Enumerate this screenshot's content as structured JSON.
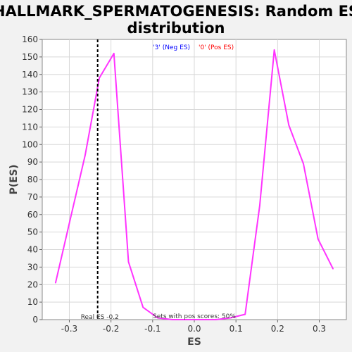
{
  "chart_data": {
    "type": "line",
    "title_line1": "HALLMARK_SPERMATOGENESIS: Random ES",
    "title_line2": "distribution",
    "xlabel": "ES",
    "ylabel": "P(ES)",
    "xlim": [
      -0.365,
      0.365
    ],
    "ylim": [
      0,
      160
    ],
    "x_ticks": [
      -0.3,
      -0.2,
      -0.1,
      0.0,
      0.1,
      0.2,
      0.3
    ],
    "x_tick_labels": [
      "-0.3",
      "-0.2",
      "-0.1",
      "0.0",
      "0.1",
      "0.2",
      "0.3"
    ],
    "y_ticks": [
      0,
      10,
      20,
      30,
      40,
      50,
      60,
      70,
      80,
      90,
      100,
      110,
      120,
      130,
      140,
      150,
      160
    ],
    "y_tick_labels": [
      "0",
      "10",
      "20",
      "30",
      "40",
      "50",
      "60",
      "70",
      "80",
      "90",
      "100",
      "110",
      "120",
      "130",
      "140",
      "150",
      "160"
    ],
    "grid": true,
    "series": [
      {
        "color": "#ff33ff",
        "x": [
          -0.333,
          -0.297,
          -0.262,
          -0.228,
          -0.193,
          -0.158,
          -0.123,
          -0.088,
          -0.053,
          -0.018,
          0.017,
          0.052,
          0.087,
          0.122,
          0.157,
          0.192,
          0.227,
          0.262,
          0.297,
          0.333
        ],
        "y": [
          21,
          58,
          94,
          138,
          152,
          33,
          7,
          1,
          0,
          0,
          0,
          0,
          1,
          3,
          65,
          154,
          111,
          89,
          46,
          29
        ]
      }
    ],
    "real_es": {
      "x": -0.232,
      "color": "#000000",
      "label": "Real ES -0.2"
    },
    "legend": [
      {
        "label": "'3' (Neg ES)",
        "color": "#0000ff"
      },
      {
        "label": "'0' (Pos ES)",
        "color": "#ff0000"
      }
    ],
    "legend_position": "top-center",
    "annotation": "Sets with pos scores: 50%"
  }
}
